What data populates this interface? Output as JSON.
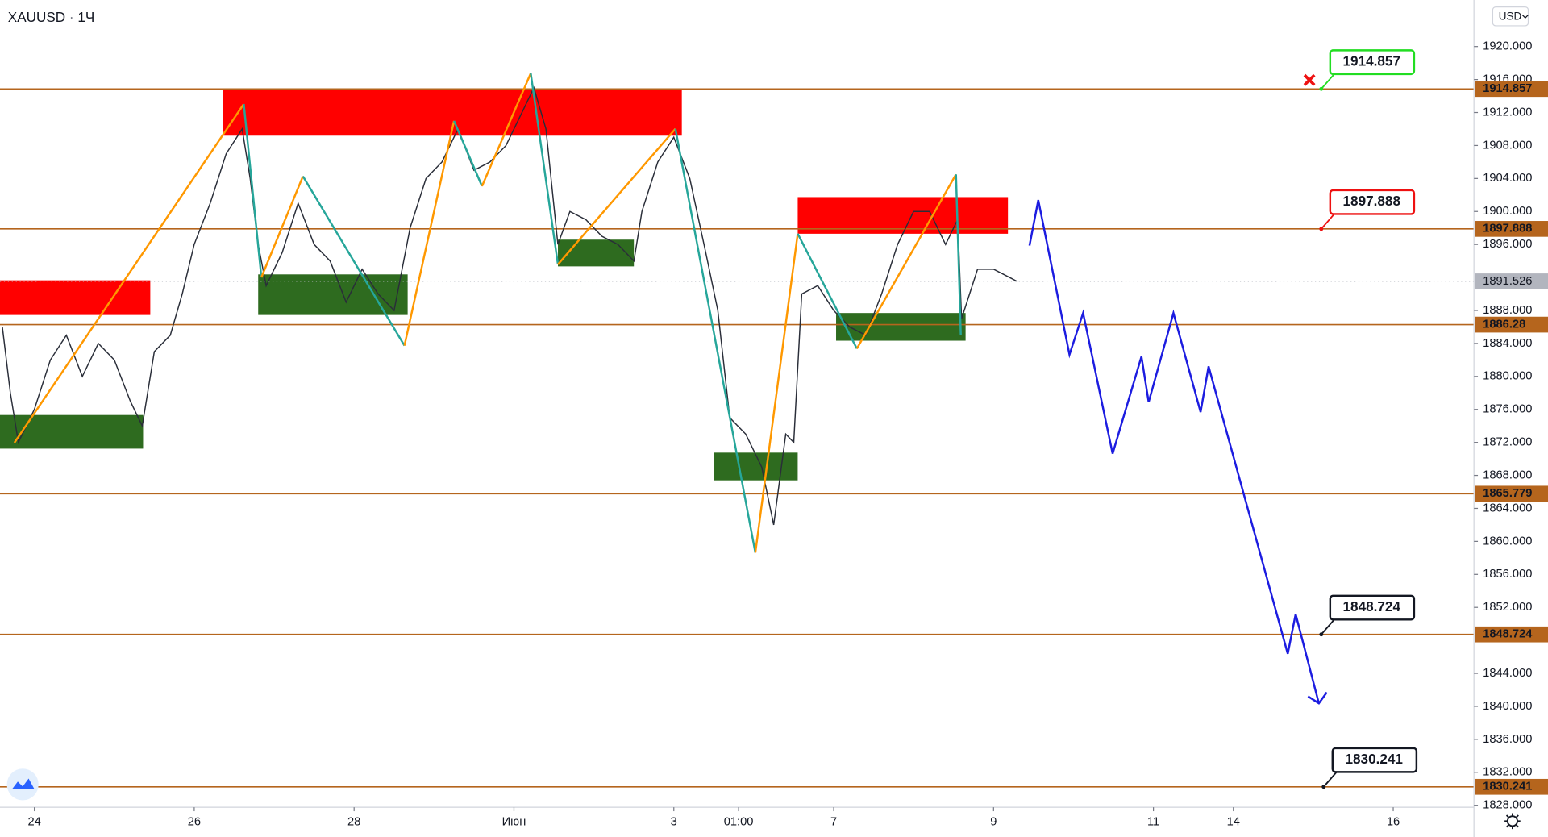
{
  "chart_data": {
    "type": "line",
    "title": "XAUUSD",
    "subtitle": "1Ч",
    "currency": "USD",
    "xlim": [
      -0.43,
      18.01
    ],
    "ylim": [
      1827.76,
      1925.64
    ],
    "xticks": [
      {
        "value": 0,
        "label": "24"
      },
      {
        "value": 2,
        "label": "26"
      },
      {
        "value": 4,
        "label": "28"
      },
      {
        "value": 6,
        "label": "Июн"
      },
      {
        "value": 8,
        "label": "3"
      },
      {
        "value": 8.81,
        "label": "01:00"
      },
      {
        "value": 10,
        "label": "7"
      },
      {
        "value": 12,
        "label": "9"
      },
      {
        "value": 14,
        "label": "11"
      },
      {
        "value": 15,
        "label": "14"
      },
      {
        "value": 17,
        "label": "16"
      }
    ],
    "yticks": [
      {
        "value": 1920,
        "label": "1920.000"
      },
      {
        "value": 1916,
        "label": "1916.000"
      },
      {
        "value": 1912,
        "label": "1912.000"
      },
      {
        "value": 1908,
        "label": "1908.000"
      },
      {
        "value": 1904,
        "label": "1904.000"
      },
      {
        "value": 1900,
        "label": "1900.000"
      },
      {
        "value": 1896,
        "label": "1896.000"
      },
      {
        "value": 1888,
        "label": "1888.000"
      },
      {
        "value": 1884,
        "label": "1884.000"
      },
      {
        "value": 1880,
        "label": "1880.000"
      },
      {
        "value": 1876,
        "label": "1876.000"
      },
      {
        "value": 1872,
        "label": "1872.000"
      },
      {
        "value": 1868,
        "label": "1868.000"
      },
      {
        "value": 1864,
        "label": "1864.000"
      },
      {
        "value": 1860,
        "label": "1860.000"
      },
      {
        "value": 1856,
        "label": "1856.000"
      },
      {
        "value": 1852,
        "label": "1852.000"
      },
      {
        "value": 1844,
        "label": "1844.000"
      },
      {
        "value": 1840,
        "label": "1840.000"
      },
      {
        "value": 1836,
        "label": "1836.000"
      },
      {
        "value": 1832,
        "label": "1832.000"
      },
      {
        "value": 1828,
        "label": "1828.000"
      }
    ],
    "grid": false,
    "series": [
      {
        "color": "#2a2e39",
        "x": [
          -0.4,
          -0.3,
          -0.2,
          0,
          0.2,
          0.4,
          0.6,
          0.8,
          1.0,
          1.2,
          1.35,
          1.5,
          1.7,
          1.85,
          2.0,
          2.2,
          2.4,
          2.6,
          2.7,
          2.8,
          2.9,
          3.1,
          3.3,
          3.5,
          3.7,
          3.9,
          4.1,
          4.3,
          4.5,
          4.7,
          4.9,
          5.1,
          5.3,
          5.5,
          5.7,
          5.9,
          6.1,
          6.25,
          6.4,
          6.55,
          6.7,
          6.9,
          7.1,
          7.3,
          7.5,
          7.6,
          7.8,
          8.0,
          8.2,
          8.4,
          8.55,
          8.7,
          8.9,
          9.1,
          9.25,
          9.4,
          9.5,
          9.6,
          9.8,
          10.0,
          10.2,
          10.4,
          10.6,
          10.8,
          11.0,
          11.2,
          11.4,
          11.55,
          11.6,
          11.8,
          12.0,
          12.2,
          12.3
        ],
        "values": [
          1886,
          1878,
          1872,
          1876,
          1882,
          1885,
          1880,
          1884,
          1882,
          1877,
          1874,
          1883,
          1885,
          1890,
          1896,
          1901,
          1907,
          1910,
          1904,
          1896,
          1891,
          1895,
          1901,
          1896,
          1894,
          1889,
          1893,
          1890,
          1888,
          1898,
          1904,
          1906,
          1910,
          1905,
          1906,
          1908,
          1912,
          1915,
          1910,
          1896,
          1900,
          1899,
          1897,
          1896,
          1894,
          1900,
          1906,
          1909,
          1904,
          1895,
          1888,
          1875,
          1873,
          1869,
          1862,
          1873,
          1872,
          1890,
          1891,
          1888,
          1886,
          1885,
          1890,
          1896,
          1900,
          1900,
          1896,
          1899,
          1887,
          1893,
          1893,
          1892,
          1891.5
        ]
      }
    ],
    "levels": {
      "color": "#b5651d",
      "values": [
        1914.857,
        1897.888,
        1886.28,
        1865.779,
        1848.724,
        1830.241
      ]
    },
    "current_price": {
      "value": 1891.526,
      "color": "#b2b5be"
    },
    "zones": [
      {
        "color": "#ff0000",
        "x": [
          -0.43,
          1.45
        ],
        "y": [
          1887.45,
          1891.65
        ]
      },
      {
        "color": "#ff0000",
        "x": [
          2.36,
          8.1
        ],
        "y": [
          1909.19,
          1914.72
        ]
      },
      {
        "color": "#ff0000",
        "x": [
          9.55,
          12.18
        ],
        "y": [
          1897.3,
          1901.74
        ]
      },
      {
        "color": "#2e6b1f",
        "x": [
          -0.43,
          1.36
        ],
        "y": [
          1871.24,
          1875.32
        ]
      },
      {
        "color": "#2e6b1f",
        "x": [
          2.8,
          4.67
        ],
        "y": [
          1887.45,
          1892.37
        ]
      },
      {
        "color": "#2e6b1f",
        "x": [
          6.55,
          7.5
        ],
        "y": [
          1893.34,
          1896.58
        ]
      },
      {
        "color": "#2e6b1f",
        "x": [
          8.5,
          9.55
        ],
        "y": [
          1867.4,
          1870.76
        ]
      },
      {
        "color": "#2e6b1f",
        "x": [
          10.03,
          11.65
        ],
        "y": [
          1884.33,
          1887.69
        ]
      }
    ],
    "zigzag": {
      "up_color": "#ff9800",
      "down_color": "#26a69a",
      "x": [
        -0.25,
        2.62,
        2.84,
        3.36,
        4.63,
        5.25,
        5.6,
        6.21,
        6.55,
        8.02,
        9.02,
        9.55,
        10.29,
        11.53,
        11.59
      ],
      "values": [
        1871.96,
        1913.03,
        1892.01,
        1904.27,
        1883.73,
        1910.99,
        1903.07,
        1916.76,
        1893.58,
        1910.03,
        1858.63,
        1897.3,
        1883.37,
        1904.5,
        1885.05
      ]
    },
    "forecast": {
      "color": "#1c1ce0",
      "x": [
        12.45,
        12.56,
        12.95,
        13.12,
        13.49,
        13.85,
        13.94,
        14.25,
        14.59,
        14.69,
        15.68,
        15.78,
        16.07
      ],
      "values": [
        1895.86,
        1901.38,
        1882.65,
        1887.69,
        1870.64,
        1882.41,
        1876.88,
        1887.69,
        1875.68,
        1881.21,
        1846.38,
        1851.18,
        1840.37
      ]
    },
    "callouts": [
      {
        "x": 16.1,
        "value": 1914.857,
        "color": "#22dd22",
        "crossed": true
      },
      {
        "x": 16.1,
        "value": 1897.888,
        "color": "#ee1111",
        "crossed": false
      },
      {
        "x": 16.1,
        "value": 1848.724,
        "color": "#131722",
        "crossed": false
      },
      {
        "x": 16.13,
        "value": 1830.241,
        "color": "#131722",
        "crossed": false
      }
    ]
  }
}
